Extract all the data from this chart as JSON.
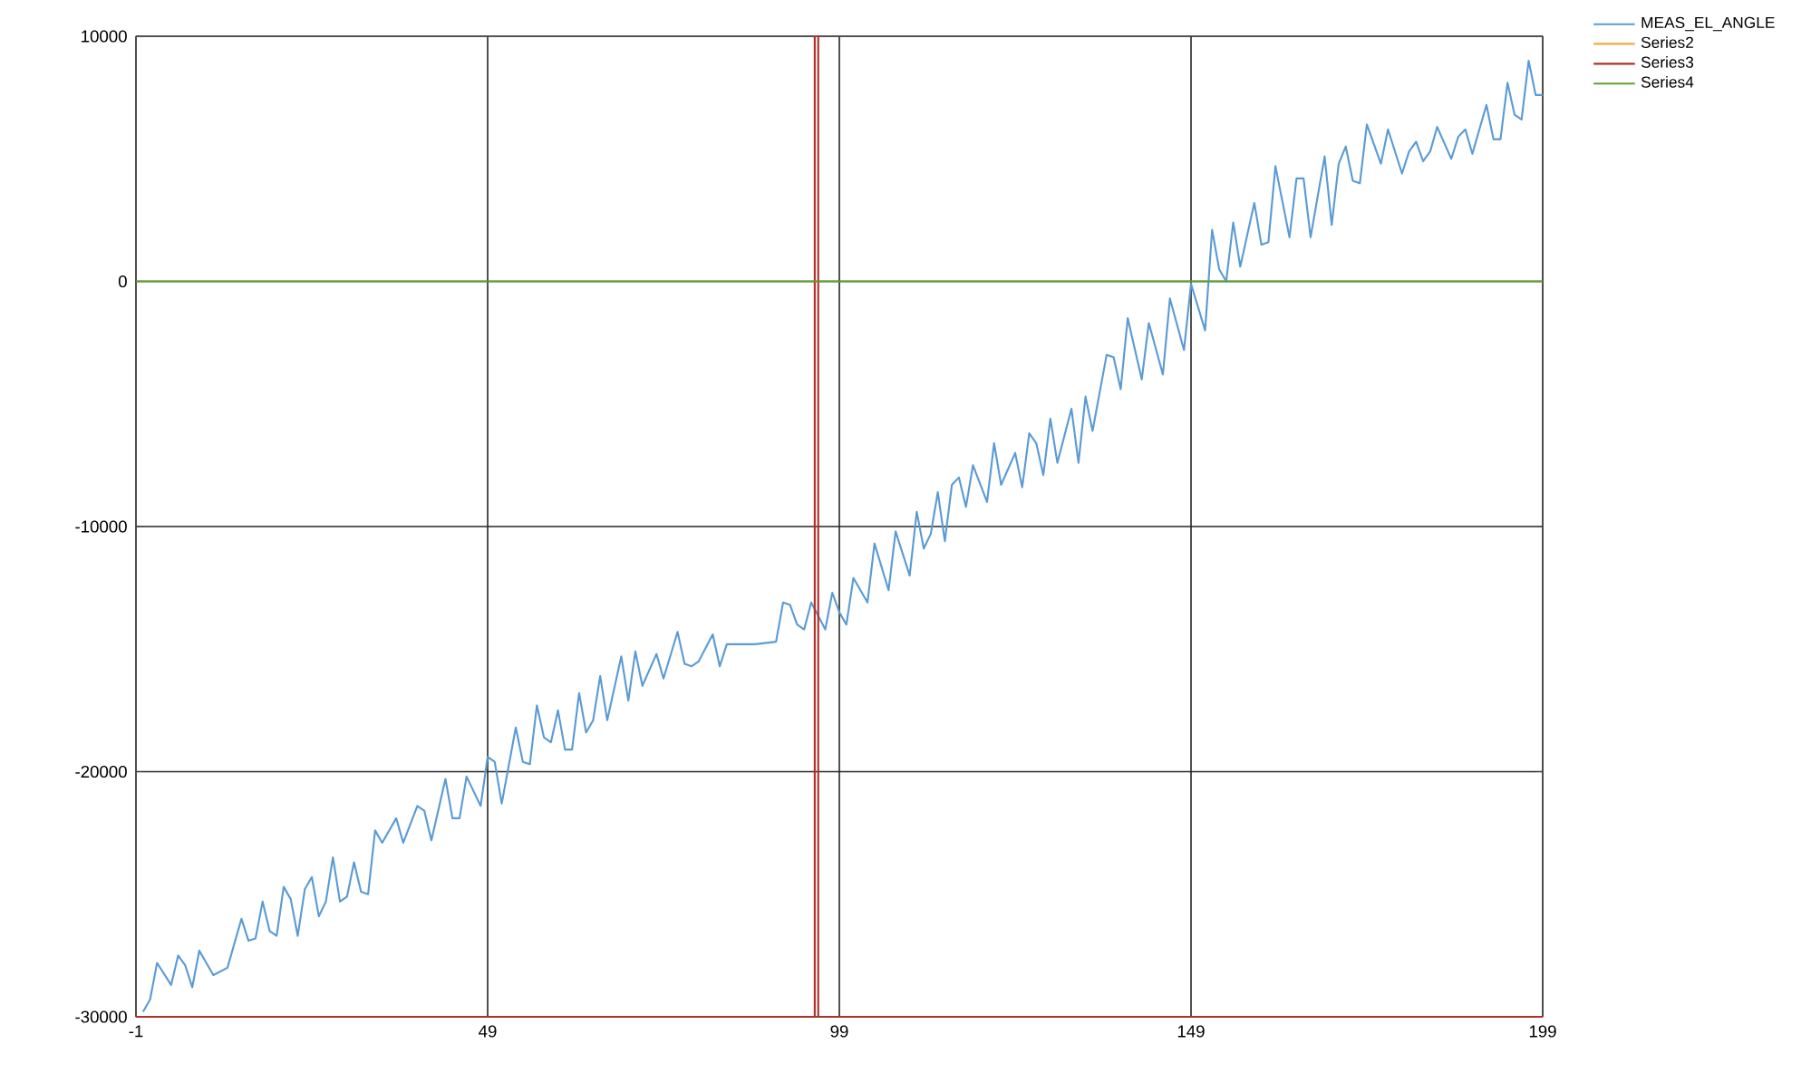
{
  "chart_data": {
    "type": "line",
    "xlim": [
      -1,
      199
    ],
    "ylim": [
      -30000,
      10000
    ],
    "xticks": [
      -1,
      49,
      99,
      149,
      199
    ],
    "yticks": [
      -30000,
      -20000,
      -10000,
      0,
      10000
    ],
    "grid": true,
    "legend": "top right",
    "series": [
      {
        "name": "MEAS_EL_ANGLE",
        "color": "#5b9bd5",
        "x": [
          0,
          1,
          2,
          4,
          5,
          6,
          7,
          8,
          10,
          12,
          14,
          15,
          16,
          17,
          18,
          19,
          20,
          21,
          22,
          23,
          24,
          25,
          26,
          27,
          28,
          29,
          30,
          31,
          32,
          33,
          34,
          36,
          37,
          39,
          40,
          41,
          43,
          44,
          45,
          46,
          48,
          49,
          50,
          51,
          53,
          54,
          55,
          56,
          57,
          58,
          59,
          60,
          61,
          62,
          63,
          64,
          65,
          66,
          68,
          69,
          70,
          71,
          73,
          74,
          76,
          77,
          78,
          79,
          81,
          82,
          83,
          87,
          90,
          91,
          92,
          93,
          94,
          95,
          97,
          98,
          99,
          100,
          101,
          103,
          104,
          106,
          107,
          109,
          110,
          111,
          112,
          113,
          114,
          115,
          116,
          117,
          118,
          120,
          121,
          122,
          124,
          125,
          126,
          127,
          128,
          129,
          130,
          132,
          133,
          134,
          135,
          137,
          138,
          139,
          140,
          142,
          143,
          145,
          146,
          148,
          149,
          151,
          152,
          153,
          154,
          155,
          156,
          158,
          159,
          160,
          161,
          163,
          164,
          165,
          166,
          168,
          169,
          170,
          171,
          172,
          173,
          174,
          176,
          177,
          179,
          180,
          181,
          182,
          183,
          184,
          186,
          187,
          188,
          189,
          191,
          192,
          193,
          194,
          195,
          196,
          197,
          198,
          199
        ],
        "values": [
          -29800,
          -29300,
          -27800,
          -28700,
          -27500,
          -27900,
          -28800,
          -27300,
          -28300,
          -28000,
          -26000,
          -26900,
          -26800,
          -25300,
          -26500,
          -26700,
          -24700,
          -25200,
          -26700,
          -24800,
          -24300,
          -25900,
          -25300,
          -23500,
          -25300,
          -25100,
          -23700,
          -24900,
          -25000,
          -22400,
          -22900,
          -21900,
          -22900,
          -21400,
          -21600,
          -22800,
          -20300,
          -21900,
          -21900,
          -20200,
          -21400,
          -19400,
          -19600,
          -21300,
          -18200,
          -19600,
          -19700,
          -17300,
          -18600,
          -18800,
          -17500,
          -19100,
          -19100,
          -16800,
          -18400,
          -17900,
          -16100,
          -17900,
          -15300,
          -17100,
          -15100,
          -16500,
          -15200,
          -16200,
          -14300,
          -15600,
          -15700,
          -15500,
          -14400,
          -15700,
          -14800,
          -14800,
          -14700,
          -13100,
          -13200,
          -14000,
          -14200,
          -13100,
          -14200,
          -12700,
          -13500,
          -14000,
          -12100,
          -13100,
          -10700,
          -12600,
          -10200,
          -12000,
          -9400,
          -10900,
          -10300,
          -8600,
          -10600,
          -8300,
          -8000,
          -9200,
          -7500,
          -9000,
          -6600,
          -8300,
          -7000,
          -8400,
          -6200,
          -6600,
          -7900,
          -5600,
          -7400,
          -5200,
          -7400,
          -4700,
          -6100,
          -3000,
          -3100,
          -4400,
          -1500,
          -4000,
          -1700,
          -3800,
          -700,
          -2800,
          -100,
          -2000,
          2100,
          500,
          0,
          2400,
          600,
          3200,
          1500,
          1600,
          4700,
          1800,
          4200,
          4200,
          1800,
          5100,
          2300,
          4800,
          5500,
          4100,
          4000,
          6400,
          4800,
          6200,
          4400,
          5300,
          5700,
          4900,
          5300,
          6300,
          5000,
          5900,
          6200,
          5200,
          7200,
          5800,
          5800,
          8100,
          6800,
          6600,
          9000,
          7600,
          7600
        ]
      },
      {
        "name": "Series2",
        "color": "#f4a742"
      },
      {
        "name": "Series3",
        "color": "#b0302a",
        "x": [
          -1,
          95.5,
          95.5,
          96,
          96,
          199
        ],
        "values": [
          -30000,
          -30000,
          10000,
          10000,
          -30000,
          -30000
        ]
      },
      {
        "name": "Series4",
        "color": "#5ea12e",
        "x": [
          -1,
          199
        ],
        "values": [
          0,
          0
        ]
      }
    ]
  }
}
